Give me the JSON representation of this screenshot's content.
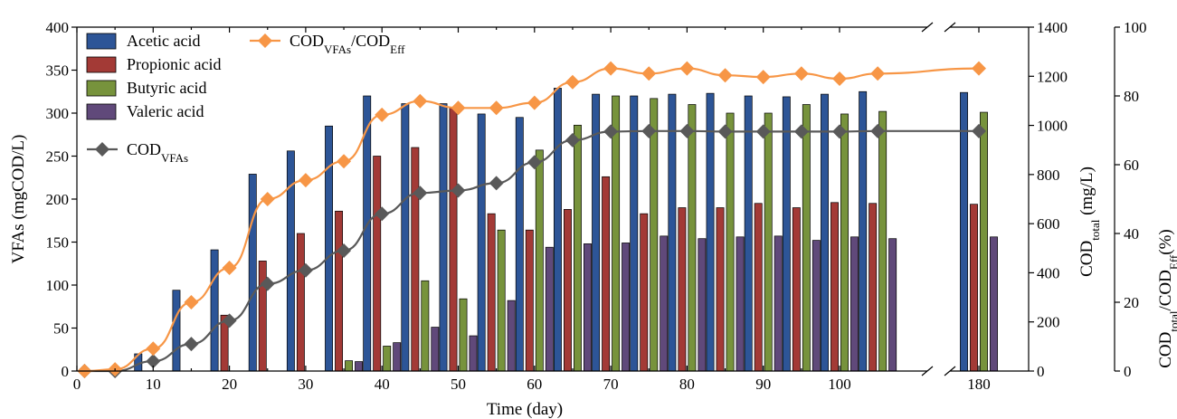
{
  "chart_data": {
    "type": "bar",
    "x_axis": {
      "label": "Time (day)",
      "ticks": [
        "0",
        "10",
        "20",
        "30",
        "40",
        "50",
        "60",
        "70",
        "80",
        "90",
        "100",
        "180"
      ],
      "break_between": [
        105,
        180
      ]
    },
    "y_left": {
      "label": "VFAs (mgCOD/L)",
      "ylim": [
        0,
        400
      ],
      "ticks": [
        "0",
        "50",
        "100",
        "150",
        "200",
        "250",
        "300",
        "350",
        "400"
      ]
    },
    "y_right1": {
      "label_main": "COD",
      "label_sub": "total",
      "label_tail": " (mg/L)",
      "ylim": [
        0,
        1400
      ],
      "ticks": [
        "0",
        "200",
        "400",
        "600",
        "800",
        "1000",
        "1200",
        "1400"
      ]
    },
    "y_right2": {
      "label_main": "COD",
      "label_sub1": "total",
      "label_mid": "/COD",
      "label_sub2": "Eff",
      "label_tail": "(%)",
      "ylim": [
        0,
        100
      ],
      "ticks": [
        "0",
        "20",
        "40",
        "60",
        "80",
        "100"
      ]
    },
    "days": [
      1,
      5,
      10,
      15,
      20,
      25,
      30,
      35,
      40,
      45,
      50,
      55,
      60,
      65,
      70,
      75,
      80,
      85,
      90,
      95,
      100,
      105,
      180
    ],
    "bar_series": [
      {
        "name": "Acetic acid",
        "color": "#2d5597",
        "values": [
          0,
          0,
          20,
          94,
          141,
          229,
          256,
          285,
          320,
          311,
          311,
          299,
          295,
          329,
          322,
          320,
          322,
          323,
          320,
          319,
          322,
          325,
          324
        ]
      },
      {
        "name": "Propionic acid",
        "color": "#a33a36",
        "values": [
          0,
          0,
          0,
          0,
          65,
          128,
          160,
          186,
          250,
          260,
          306,
          183,
          164,
          188,
          226,
          183,
          190,
          190,
          195,
          190,
          196,
          195,
          194
        ]
      },
      {
        "name": "Butyric acid",
        "color": "#77933c",
        "values": [
          0,
          0,
          0,
          0,
          0,
          0,
          0,
          12,
          29,
          105,
          84,
          164,
          257,
          286,
          320,
          317,
          310,
          300,
          300,
          310,
          299,
          302,
          301
        ]
      },
      {
        "name": "Valeric acid",
        "color": "#60497a",
        "values": [
          0,
          0,
          0,
          0,
          0,
          0,
          0,
          11,
          33,
          51,
          41,
          82,
          144,
          148,
          149,
          157,
          154,
          156,
          157,
          152,
          156,
          154,
          156
        ]
      }
    ],
    "line_series": [
      {
        "name_main": "COD",
        "name_sub": "VFAs",
        "axis": "y_right1",
        "color": "#595959",
        "marker": "diamond",
        "values": [
          0,
          0,
          40,
          110,
          205,
          355,
          410,
          490,
          640,
          725,
          735,
          765,
          850,
          940,
          975,
          977,
          977,
          975,
          975,
          975,
          975,
          977,
          977
        ]
      },
      {
        "name_main": "COD",
        "name_sub": "VFAs",
        "name_mid": "/COD",
        "name_sub2": "Eff",
        "axis": "y_right2",
        "color": "#f79646",
        "marker": "diamond",
        "values": [
          0,
          0.5,
          6.5,
          20,
          30,
          50,
          55.5,
          61,
          74.5,
          78.5,
          76.5,
          76.5,
          78,
          84,
          88,
          86.5,
          88,
          86,
          85.5,
          86.5,
          85,
          86.5,
          88
        ]
      }
    ]
  }
}
